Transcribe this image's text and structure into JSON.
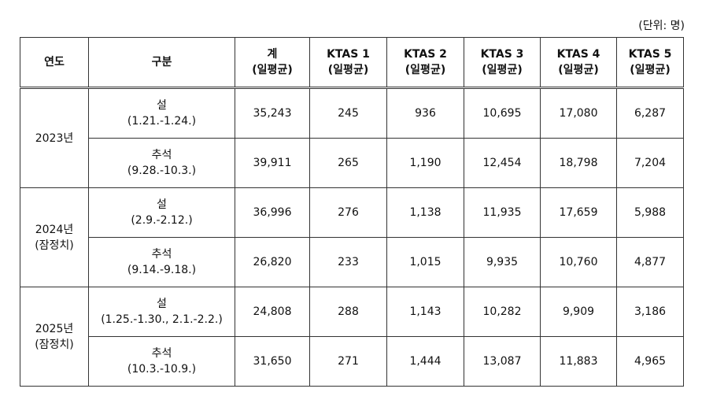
{
  "unit_note": "(단위: 명)",
  "table": {
    "header": [
      [
        "연도"
      ],
      [
        "구분"
      ],
      [
        "계",
        "(일평균)"
      ],
      [
        "KTAS 1",
        "(일평균)"
      ],
      [
        "KTAS 2",
        "(일평균)"
      ],
      [
        "KTAS 3",
        "(일평균)"
      ],
      [
        "KTAS 4",
        "(일평균)"
      ],
      [
        "KTAS 5",
        "(일평균)"
      ]
    ],
    "groups": [
      {
        "year": [
          "2023년"
        ],
        "rows": [
          {
            "category": [
              "설",
              "(1.21.-1.24.)"
            ],
            "values": [
              "35,243",
              "245",
              "936",
              "10,695",
              "17,080",
              "6,287"
            ]
          },
          {
            "category": [
              "추석",
              "(9.28.-10.3.)"
            ],
            "values": [
              "39,911",
              "265",
              "1,190",
              "12,454",
              "18,798",
              "7,204"
            ]
          }
        ]
      },
      {
        "year": [
          "2024년",
          "(잠정치)"
        ],
        "rows": [
          {
            "category": [
              "설",
              "(2.9.-2.12.)"
            ],
            "values": [
              "36,996",
              "276",
              "1,138",
              "11,935",
              "17,659",
              "5,988"
            ]
          },
          {
            "category": [
              "추석",
              "(9.14.-9.18.)"
            ],
            "values": [
              "26,820",
              "233",
              "1,015",
              "9,935",
              "10,760",
              "4,877"
            ]
          }
        ]
      },
      {
        "year": [
          "2025년",
          "(잠정치)"
        ],
        "rows": [
          {
            "category": [
              "설",
              "(1.25.-1.30., 2.1.-2.2.)"
            ],
            "values": [
              "24,808",
              "288",
              "1,143",
              "10,282",
              "9,909",
              "3,186"
            ]
          },
          {
            "category": [
              "추석",
              "(10.3.-10.9.)"
            ],
            "values": [
              "31,650",
              "271",
              "1,444",
              "13,087",
              "11,883",
              "4,965"
            ]
          }
        ]
      }
    ]
  }
}
